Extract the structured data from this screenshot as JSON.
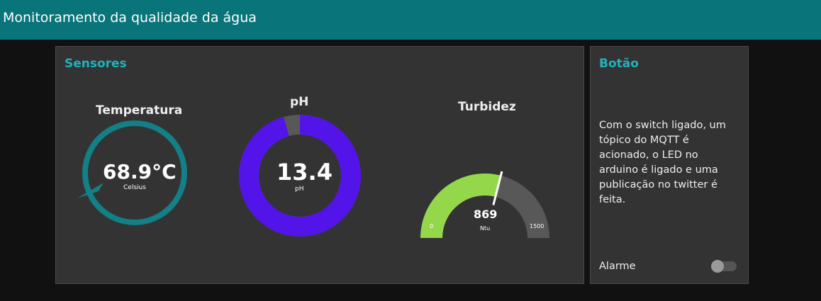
{
  "header": {
    "title": "Monitoramento da qualidade da água"
  },
  "colors": {
    "header_bg": "#097479",
    "accent_title": "#1fb3bd",
    "temp_ring": "#137f86",
    "ph_fill": "#5214e8",
    "ph_bg": "#585858",
    "turb_fill": "#94d74a",
    "turb_bg": "#585858"
  },
  "sensores": {
    "title": "Sensores",
    "temperatura": {
      "label": "Temperatura",
      "value": "68.9°C",
      "unit": "Celsius",
      "level": 68.9
    },
    "ph": {
      "label": "pH",
      "value": "13.4",
      "unit": "pH",
      "fraction": 0.957
    },
    "turbidez": {
      "label": "Turbidez",
      "value": "869",
      "unit": "Ntu",
      "min": "0",
      "max": "1500",
      "level": 869,
      "range": [
        0,
        1500
      ]
    }
  },
  "botao": {
    "title": "Botão",
    "description": "Com o switch ligado, um tópico do MQTT é acionado, o LED no arduino é ligado e uma publicação no twitter é feita.",
    "switch_label": "Alarme",
    "switch_on": false
  }
}
